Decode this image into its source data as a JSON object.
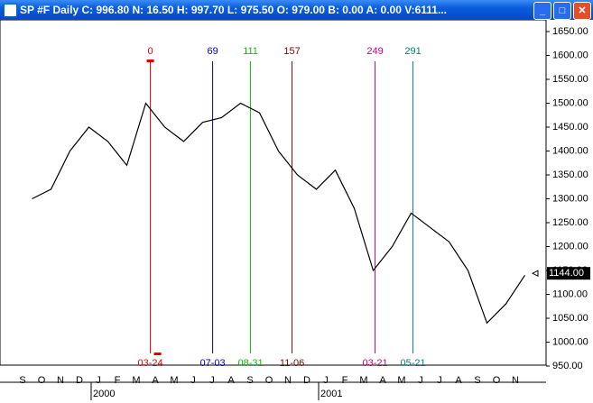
{
  "window": {
    "title": "SP #F Daily C: 996.80 N: 16.50 H: 997.70 L: 975.50 O: 979.00 B: 0.00 A: 0.00 V:6111..."
  },
  "chart_data": {
    "type": "line",
    "categories": [
      "S",
      "O",
      "N",
      "D",
      "J",
      "F",
      "M",
      "A",
      "M",
      "J",
      "J",
      "A",
      "S",
      "O",
      "N",
      "D",
      "J",
      "F",
      "M",
      "A",
      "M",
      "J",
      "J",
      "A",
      "S",
      "O",
      "N"
    ],
    "values": [
      1300,
      1320,
      1400,
      1450,
      1420,
      1370,
      1500,
      1450,
      1420,
      1460,
      1470,
      1500,
      1480,
      1400,
      1350,
      1320,
      1360,
      1280,
      1150,
      1200,
      1270,
      1240,
      1210,
      1150,
      1040,
      1080,
      1140
    ],
    "color": "#000000",
    "ylim": [
      950,
      1650
    ],
    "yticks": [
      {
        "value": 950,
        "label": "950.00"
      },
      {
        "value": 1000,
        "label": "1000.00"
      },
      {
        "value": 1050,
        "label": "1050.00"
      },
      {
        "value": 1100,
        "label": "1100.00"
      },
      {
        "value": 1150,
        "label": "1150.00"
      },
      {
        "value": 1200,
        "label": "1200.00"
      },
      {
        "value": 1250,
        "label": "1250.00"
      },
      {
        "value": 1300,
        "label": "1300.00"
      },
      {
        "value": 1350,
        "label": "1350.00"
      },
      {
        "value": 1400,
        "label": "1400.00"
      },
      {
        "value": 1450,
        "label": "1450.00"
      },
      {
        "value": 1500,
        "label": "1500.00"
      },
      {
        "value": 1550,
        "label": "1550.00"
      },
      {
        "value": 1600,
        "label": "1600.00"
      },
      {
        "value": 1650,
        "label": "1650.00"
      }
    ],
    "years": [
      "2000",
      "2001"
    ],
    "last_price": {
      "value": 1144,
      "label": "1144.00"
    },
    "markers": [
      {
        "bar": 0,
        "date": "03-24",
        "color": "#e00000"
      },
      {
        "bar": 69,
        "date": "07-03",
        "color": "#0000c0"
      },
      {
        "bar": 111,
        "date": "08-31",
        "color": "#00c000"
      },
      {
        "bar": 157,
        "date": "11-06",
        "color": "#800000"
      },
      {
        "bar": 249,
        "date": "03-21",
        "color": "#c0007f"
      },
      {
        "bar": 291,
        "date": "05-21",
        "color": "#008080"
      }
    ]
  }
}
